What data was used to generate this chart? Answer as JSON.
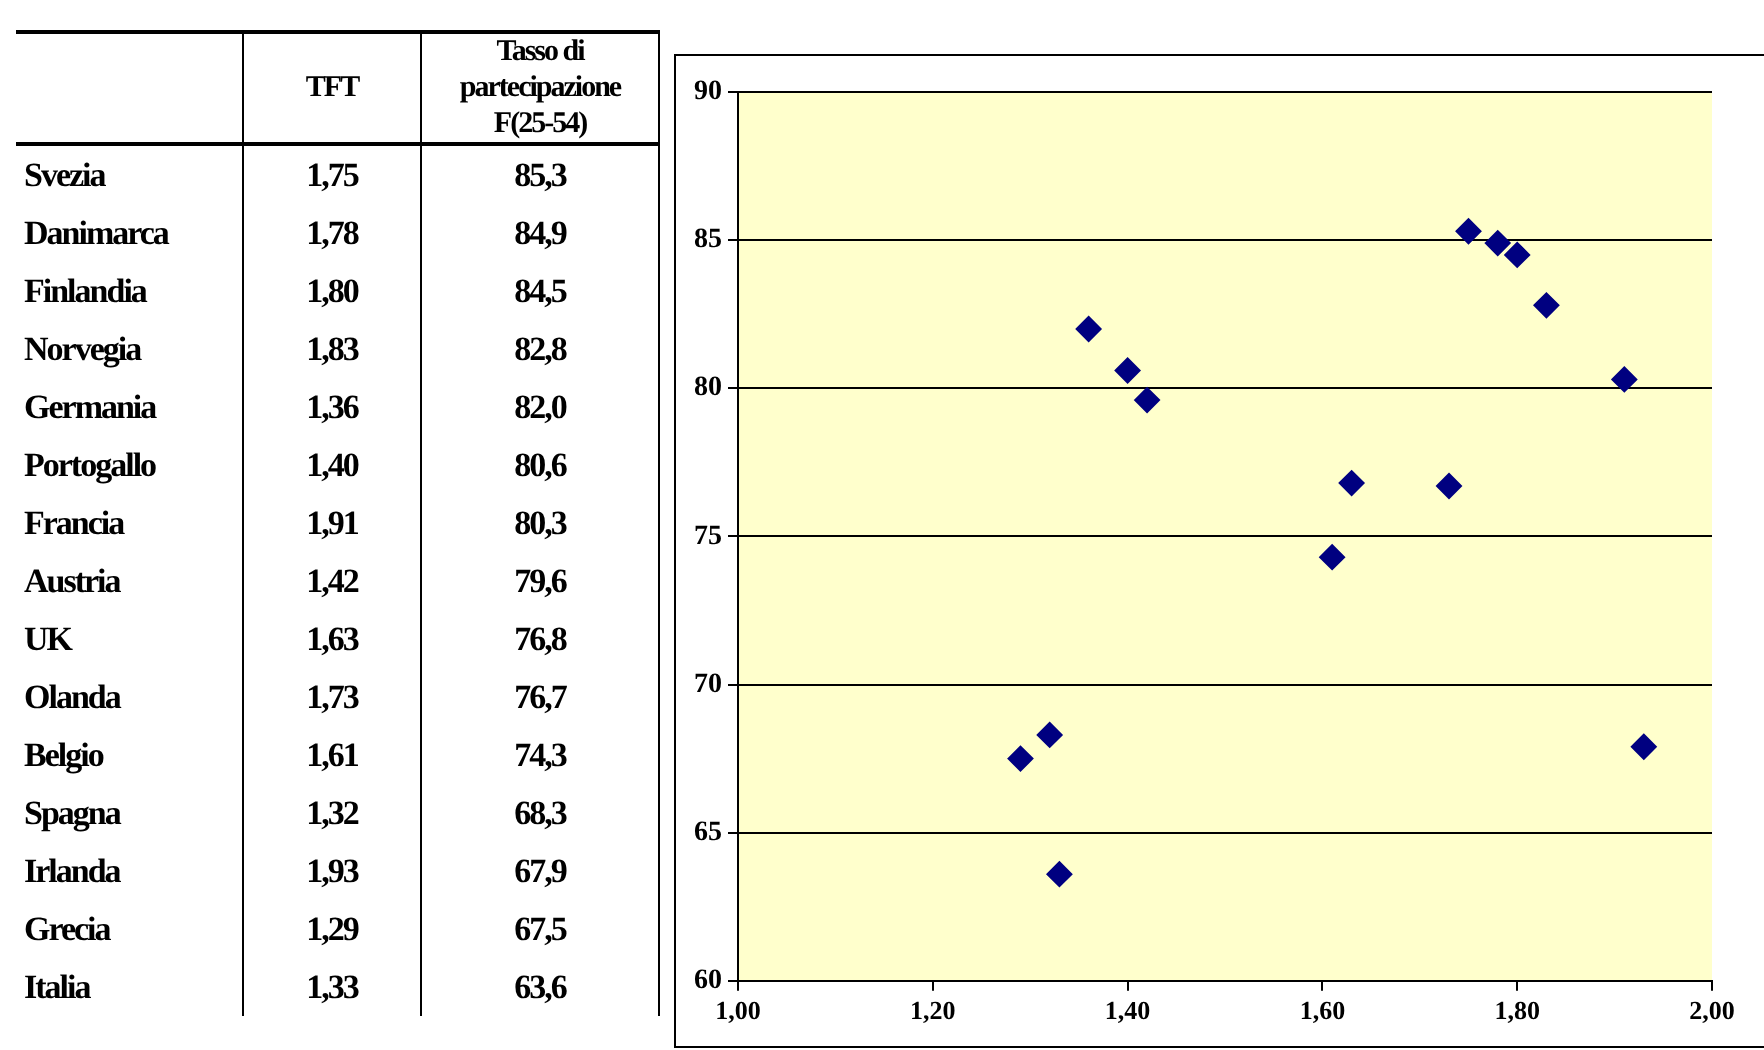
{
  "chart_data": [
    {
      "type": "other",
      "categories": [
        "Svezia",
        "Danimarca",
        "Finlandia",
        "Norvegia",
        "Germania",
        "Portogallo",
        "Francia",
        "Austria",
        "UK",
        "Olanda",
        "Belgio",
        "Spagna",
        "Irlanda",
        "Grecia",
        "Italia"
      ],
      "series": [
        {
          "name": "TFT",
          "values": [
            1.75,
            1.78,
            1.8,
            1.83,
            1.36,
            1.4,
            1.91,
            1.42,
            1.63,
            1.73,
            1.61,
            1.32,
            1.93,
            1.29,
            1.33
          ],
          "value_labels": [
            "1,75",
            "1,78",
            "1,80",
            "1,83",
            "1,36",
            "1,40",
            "1,91",
            "1,42",
            "1,63",
            "1,73",
            "1,61",
            "1,32",
            "1,93",
            "1,29",
            "1,33"
          ]
        },
        {
          "name": "Tasso di partecipazione F(25-54)",
          "values": [
            85.3,
            84.9,
            84.5,
            82.8,
            82.0,
            80.6,
            80.3,
            79.6,
            76.8,
            76.7,
            74.3,
            68.3,
            67.9,
            67.5,
            63.6
          ],
          "value_labels": [
            "85,3",
            "84,9",
            "84,5",
            "82,8",
            "82,0",
            "80,6",
            "80,3",
            "79,6",
            "76,8",
            "76,7",
            "74,3",
            "68,3",
            "67,9",
            "67,5",
            "63,6"
          ]
        }
      ]
    },
    {
      "type": "scatter",
      "x": [
        1.75,
        1.78,
        1.8,
        1.83,
        1.36,
        1.4,
        1.91,
        1.42,
        1.63,
        1.73,
        1.61,
        1.32,
        1.93,
        1.29,
        1.33
      ],
      "values": [
        85.3,
        84.9,
        84.5,
        82.8,
        82.0,
        80.6,
        80.3,
        79.6,
        76.8,
        76.7,
        74.3,
        68.3,
        67.9,
        67.5,
        63.6
      ],
      "color": "#000080",
      "marker": "diamond",
      "grid": "y",
      "legend": false,
      "xlim": [
        1.0,
        2.0
      ],
      "xticks": [
        {
          "value": 1.0,
          "label": "1,00"
        },
        {
          "value": 1.2,
          "label": "1,20"
        },
        {
          "value": 1.4,
          "label": "1,40"
        },
        {
          "value": 1.6,
          "label": "1,60"
        },
        {
          "value": 1.8,
          "label": "1,80"
        },
        {
          "value": 2.0,
          "label": "2,00"
        }
      ],
      "ylim": [
        60,
        90
      ],
      "yticks": [
        60,
        65,
        70,
        75,
        80,
        85,
        90
      ]
    }
  ]
}
